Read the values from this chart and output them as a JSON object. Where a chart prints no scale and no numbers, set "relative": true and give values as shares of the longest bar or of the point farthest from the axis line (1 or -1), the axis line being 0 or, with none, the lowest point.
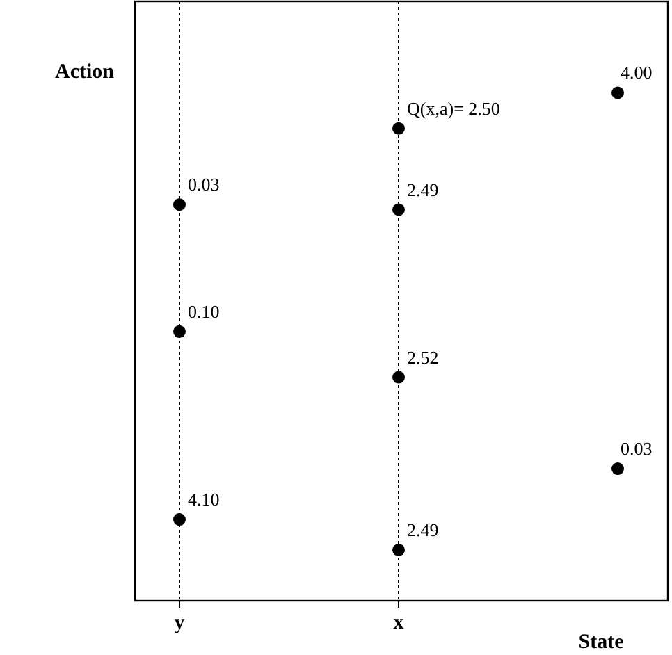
{
  "chart_data": {
    "type": "scatter",
    "xlabel": "State",
    "ylabel": "Action",
    "relative": true,
    "categories": [
      "y",
      "x",
      null
    ],
    "series": [
      {
        "color": "#000000",
        "values": [
          0.78,
          0.93,
          1
        ]
      },
      {
        "color": "#000000",
        "values": [
          0.53,
          0.77,
          0.26
        ]
      },
      {
        "color": "#000000",
        "values": [
          0.16,
          0.44,
          null
        ]
      },
      {
        "color": "#000000",
        "values": [
          null,
          0.1,
          null
        ]
      }
    ],
    "annotations": [
      "4.00",
      {
        "text": "Q(x,a)= 2.50",
        "x": "x",
        "y": 0.93
      },
      {
        "text": "0.03",
        "x": "y",
        "y": 0.78
      },
      {
        "text": "2.49",
        "x": "x",
        "y": 0.77
      },
      {
        "text": "0.10",
        "x": "y",
        "y": 0.53
      },
      {
        "text": "2.52",
        "x": "x",
        "y": 0.44
      },
      "0.03",
      {
        "text": "4.10",
        "x": "y",
        "y": 0.16
      },
      {
        "text": "2.49",
        "x": "x",
        "y": 0.1
      }
    ],
    "marker": "circle",
    "grid": "x"
  }
}
